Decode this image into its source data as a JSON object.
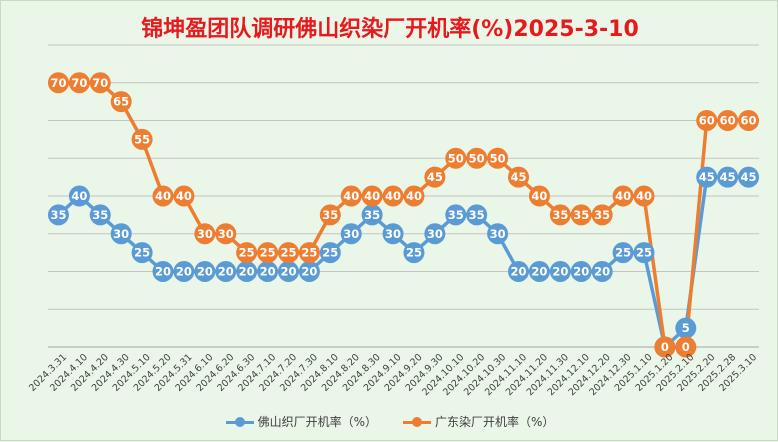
{
  "chart_data": {
    "type": "line",
    "title": "锦坤盈团队调研佛山织染厂开机率(%)2025-3-10",
    "categories": [
      "2024.3.31",
      "2024.4.10",
      "2024.4.20",
      "2024.4.30",
      "2024.5.10",
      "2024.5.20",
      "2024.5.31",
      "2024.6.10",
      "2024.6.20",
      "2024.6.30",
      "2024.7.10",
      "2024.7.20",
      "2024.7.30",
      "2024.8.10",
      "2024.8.20",
      "2024.8.30",
      "2024.9.10",
      "2024.9.20",
      "2024.9.30",
      "2024.10.10",
      "2024.10.20",
      "2024.10.30",
      "2024.11.10",
      "2024.11.20",
      "2024.11.30",
      "2024.12.10",
      "2024.12.20",
      "2024.12.30",
      "2025.1.10",
      "2025.1.20",
      "2025.2.10",
      "2025.2.20",
      "2025.2.28",
      "2025.3.10"
    ],
    "series": [
      {
        "name": "佛山织厂开机率（%）",
        "color": "#5b9bd5",
        "values": [
          35,
          40,
          35,
          30,
          25,
          20,
          20,
          20,
          20,
          20,
          20,
          20,
          20,
          25,
          30,
          35,
          30,
          25,
          30,
          35,
          35,
          30,
          20,
          20,
          20,
          20,
          20,
          25,
          25,
          0,
          5,
          45,
          45,
          45
        ]
      },
      {
        "name": "广东染厂开机率（%）",
        "color": "#ed7d31",
        "values": [
          70,
          70,
          70,
          65,
          55,
          40,
          40,
          30,
          30,
          25,
          25,
          25,
          25,
          35,
          40,
          40,
          40,
          40,
          45,
          50,
          50,
          50,
          45,
          40,
          35,
          35,
          35,
          40,
          40,
          0,
          0,
          60,
          60,
          60
        ]
      }
    ],
    "ylim": [
      0,
      80
    ],
    "grid": true,
    "legend": "bottom"
  }
}
